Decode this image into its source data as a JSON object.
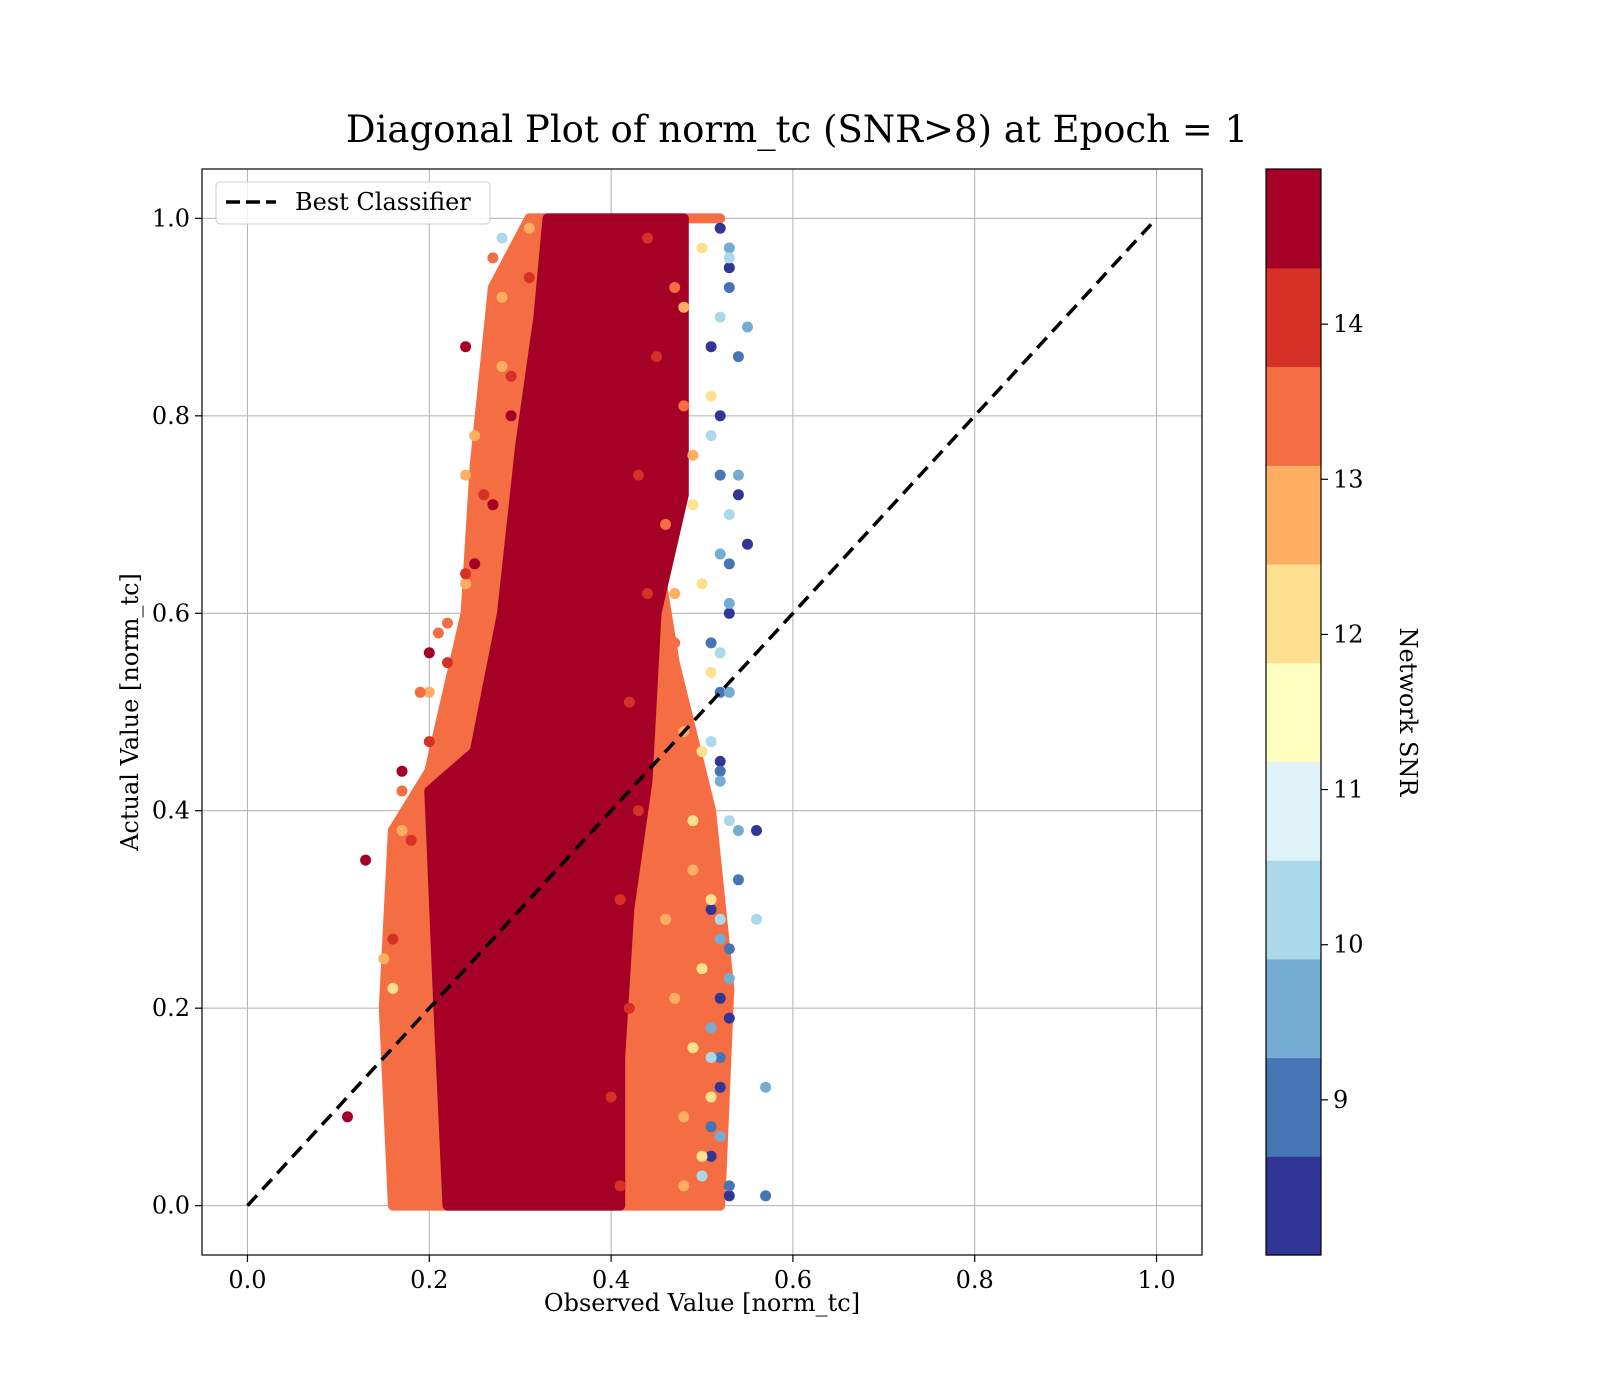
{
  "chart_data": {
    "type": "scatter",
    "title": "Diagonal Plot of norm_tc (SNR>8) at Epoch = 1",
    "xlabel": "Observed Value [norm_tc]",
    "ylabel": "Actual Value [norm_tc]",
    "xlim": [
      -0.05,
      1.05
    ],
    "ylim": [
      -0.05,
      1.05
    ],
    "x_ticks": [
      "0.0",
      "0.2",
      "0.4",
      "0.6",
      "0.8",
      "1.0"
    ],
    "y_ticks": [
      "0.0",
      "0.2",
      "0.4",
      "0.6",
      "0.8",
      "1.0"
    ],
    "grid": true,
    "legend": {
      "placement": "upper-left",
      "entries": [
        "Best Classifier"
      ]
    },
    "reference_line": {
      "name": "Best Classifier",
      "style": "dashed",
      "color": "#000000",
      "x": [
        0.0,
        1.0
      ],
      "y": [
        0.0,
        1.0
      ]
    },
    "colorbar": {
      "label": "Network SNR",
      "range": [
        8,
        15
      ],
      "ticks": [
        "9",
        "10",
        "11",
        "12",
        "13",
        "14"
      ],
      "tick_values": [
        9,
        10,
        11,
        12,
        13,
        14
      ],
      "colors": [
        "#313695",
        "#4575b4",
        "#74add1",
        "#abd9e9",
        "#e0f3f8",
        "#ffffbf",
        "#fee090",
        "#fdae61",
        "#f46d43",
        "#d73027",
        "#a50026"
      ]
    },
    "series": [
      {
        "snr": 8.5,
        "color": "#313695",
        "x": [
          0.52,
          0.53,
          0.51,
          0.52,
          0.55,
          0.56,
          0.53,
          0.52,
          0.51,
          0.53,
          0.52,
          0.51,
          0.53,
          0.52,
          0.54
        ],
        "y": [
          0.99,
          0.95,
          0.87,
          0.8,
          0.67,
          0.38,
          0.6,
          0.45,
          0.3,
          0.19,
          0.12,
          0.05,
          0.01,
          0.21,
          0.72
        ]
      },
      {
        "snr": 9.5,
        "color": "#4575b4",
        "x": [
          0.53,
          0.54,
          0.52,
          0.53,
          0.52,
          0.54,
          0.53,
          0.52,
          0.51,
          0.53,
          0.52,
          0.51,
          0.57
        ],
        "y": [
          0.93,
          0.86,
          0.74,
          0.65,
          0.52,
          0.33,
          0.26,
          0.15,
          0.08,
          0.02,
          0.44,
          0.57,
          0.01
        ]
      },
      {
        "snr": 10.5,
        "color": "#74add1",
        "x": [
          0.53,
          0.55,
          0.54,
          0.52,
          0.53,
          0.52,
          0.54,
          0.52,
          0.53,
          0.57,
          0.51,
          0.52,
          0.53
        ],
        "y": [
          0.97,
          0.89,
          0.74,
          0.66,
          0.52,
          0.43,
          0.38,
          0.27,
          0.23,
          0.12,
          0.18,
          0.07,
          0.61
        ]
      },
      {
        "snr": 11.5,
        "color": "#abd9e9",
        "x": [
          0.28,
          0.53,
          0.52,
          0.51,
          0.53,
          0.52,
          0.51,
          0.53,
          0.52,
          0.51,
          0.56,
          0.5
        ],
        "y": [
          0.98,
          0.96,
          0.9,
          0.78,
          0.7,
          0.56,
          0.47,
          0.39,
          0.29,
          0.15,
          0.29,
          0.03
        ]
      },
      {
        "snr": 12.5,
        "color": "#fee090",
        "x": [
          0.5,
          0.51,
          0.49,
          0.5,
          0.51,
          0.5,
          0.49,
          0.51,
          0.5,
          0.49,
          0.51,
          0.5,
          0.16
        ],
        "y": [
          0.97,
          0.82,
          0.71,
          0.63,
          0.54,
          0.46,
          0.39,
          0.31,
          0.24,
          0.16,
          0.11,
          0.05,
          0.22
        ]
      },
      {
        "snr": 13.5,
        "color": "#fdae61",
        "x": [
          0.31,
          0.28,
          0.25,
          0.24,
          0.28,
          0.24,
          0.2,
          0.17,
          0.15,
          0.48,
          0.49,
          0.47,
          0.48,
          0.49,
          0.47,
          0.48,
          0.46,
          0.48
        ],
        "y": [
          0.99,
          0.92,
          0.78,
          0.74,
          0.85,
          0.63,
          0.52,
          0.38,
          0.25,
          0.91,
          0.76,
          0.62,
          0.48,
          0.34,
          0.21,
          0.09,
          0.29,
          0.02
        ]
      },
      {
        "snr": 14.5,
        "color": "#f46d43",
        "x": [
          0.27,
          0.27,
          0.22,
          0.21,
          0.19,
          0.17,
          0.16,
          0.26,
          0.47,
          0.48,
          0.46,
          0.47,
          0.48,
          0.46,
          0.47,
          0.45,
          0.46,
          0.47
        ],
        "y": [
          0.96,
          0.87,
          0.59,
          0.58,
          0.52,
          0.42,
          0.18,
          0.75,
          0.93,
          0.81,
          0.69,
          0.57,
          0.44,
          0.36,
          0.26,
          0.17,
          0.08,
          0.03
        ]
      },
      {
        "snr": 14.9,
        "color": "#d73027",
        "x": [
          0.31,
          0.29,
          0.26,
          0.24,
          0.22,
          0.2,
          0.18,
          0.16,
          0.44,
          0.45,
          0.43,
          0.44,
          0.42,
          0.43,
          0.41,
          0.42,
          0.4,
          0.41
        ],
        "y": [
          0.94,
          0.84,
          0.72,
          0.64,
          0.55,
          0.47,
          0.37,
          0.27,
          0.98,
          0.86,
          0.74,
          0.62,
          0.51,
          0.4,
          0.31,
          0.2,
          0.11,
          0.02
        ]
      },
      {
        "snr": 15.0,
        "color": "#a50026",
        "x": [
          0.24,
          0.27,
          0.2,
          0.17,
          0.11,
          0.13,
          0.25,
          0.29,
          0.35,
          0.3,
          0.4,
          0.45
        ],
        "y": [
          0.87,
          0.71,
          0.56,
          0.44,
          0.09,
          0.35,
          0.65,
          0.8,
          0.73,
          0.5,
          0.83,
          0.96
        ]
      }
    ],
    "dense_core": [
      {
        "color": "#f46d43",
        "polygon": [
          [
            0.52,
            1.0
          ],
          [
            0.46,
            1.0
          ],
          [
            0.44,
            0.72
          ],
          [
            0.47,
            0.55
          ],
          [
            0.51,
            0.4
          ],
          [
            0.53,
            0.22
          ],
          [
            0.52,
            0.0
          ],
          [
            0.16,
            0.0
          ],
          [
            0.15,
            0.2
          ],
          [
            0.16,
            0.38
          ],
          [
            0.2,
            0.44
          ],
          [
            0.24,
            0.6
          ],
          [
            0.25,
            0.75
          ],
          [
            0.27,
            0.93
          ],
          [
            0.31,
            1.0
          ]
        ]
      },
      {
        "color": "#a50026",
        "polygon": [
          [
            0.33,
            1.0
          ],
          [
            0.48,
            1.0
          ],
          [
            0.48,
            0.72
          ],
          [
            0.45,
            0.6
          ],
          [
            0.44,
            0.43
          ],
          [
            0.42,
            0.3
          ],
          [
            0.41,
            0.15
          ],
          [
            0.41,
            0.0
          ],
          [
            0.22,
            0.0
          ],
          [
            0.21,
            0.2
          ],
          [
            0.2,
            0.42
          ],
          [
            0.25,
            0.46
          ],
          [
            0.28,
            0.6
          ],
          [
            0.3,
            0.77
          ],
          [
            0.32,
            0.9
          ]
        ]
      }
    ]
  }
}
